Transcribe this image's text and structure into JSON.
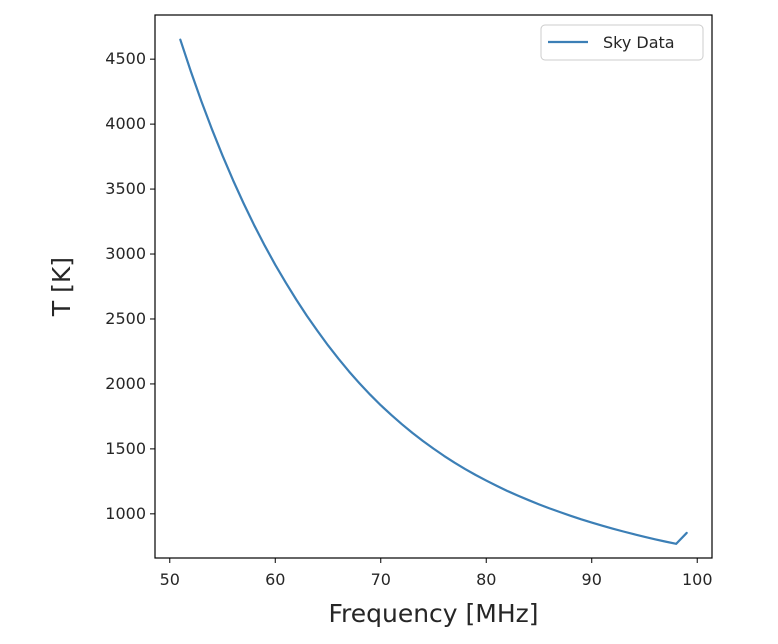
{
  "chart_data": {
    "type": "line",
    "title": "",
    "xlabel": "Frequency [MHz]",
    "ylabel": "T [K]",
    "xlim": [
      48.6,
      101.4
    ],
    "ylim": [
      660,
      4840
    ],
    "xticks": [
      50,
      60,
      70,
      80,
      90,
      100
    ],
    "yticks": [
      1000,
      1500,
      2000,
      2500,
      3000,
      3500,
      4000,
      4500
    ],
    "grid": false,
    "legend": {
      "placement": "top-right"
    },
    "series": [
      {
        "name": "Sky Data",
        "color": "#3c7fb6",
        "x": [
          51,
          52,
          53,
          54,
          55,
          56,
          57,
          58,
          59,
          60,
          61,
          62,
          63,
          64,
          65,
          66,
          67,
          68,
          69,
          70,
          71,
          72,
          73,
          74,
          75,
          76,
          77,
          78,
          79,
          80,
          81,
          82,
          83,
          84,
          85,
          86,
          87,
          88,
          89,
          90,
          91,
          92,
          93,
          94,
          95,
          96,
          97,
          98,
          99
        ],
        "y": [
          4650,
          4405,
          4175,
          3960,
          3758,
          3568,
          3390,
          3222,
          3065,
          2917,
          2779,
          2648,
          2524,
          2408,
          2297,
          2193,
          2095,
          2003,
          1917,
          1836,
          1761,
          1690,
          1623,
          1561,
          1502,
          1446,
          1394,
          1345,
          1299,
          1256,
          1215,
          1176,
          1140,
          1106,
          1073,
          1042,
          1013,
          985,
          958,
          933,
          909,
          886,
          864,
          843,
          823,
          804,
          786,
          769,
          853
        ]
      }
    ]
  }
}
